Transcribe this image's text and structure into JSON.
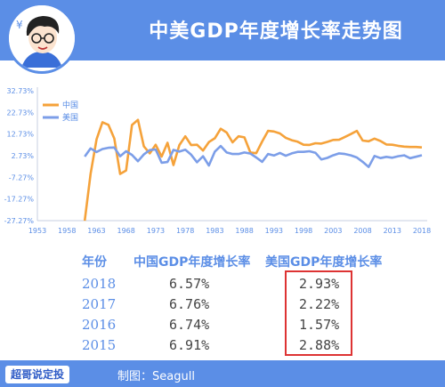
{
  "header": {
    "title": "中美GDP年度增长率走势图"
  },
  "chart_data": {
    "type": "line",
    "title": "中美GDP年度增长率走势图",
    "yticks": [
      "32.73%",
      "22.73%",
      "12.73%",
      "2.73%",
      "-7.27%",
      "-17.27%",
      "-27.27%"
    ],
    "ytick_values": [
      32.73,
      22.73,
      12.73,
      2.73,
      -7.27,
      -17.27,
      -27.27
    ],
    "ylim": [
      -27.27,
      32.73
    ],
    "xticks": [
      "1953",
      "1958",
      "1963",
      "1968",
      "1973",
      "1978",
      "1983",
      "1988",
      "1993",
      "1998",
      "2003",
      "2008",
      "2013",
      "2018"
    ],
    "xtick_values": [
      1953,
      1958,
      1963,
      1968,
      1973,
      1978,
      1983,
      1988,
      1993,
      1998,
      2003,
      2008,
      2013,
      2018
    ],
    "xlim": [
      1953,
      2018
    ],
    "grid": false,
    "legend_position": "top-left",
    "series": [
      {
        "name": "中国",
        "color": "#f5a23a",
        "x": [
          1961,
          1962,
          1963,
          1964,
          1965,
          1966,
          1967,
          1968,
          1969,
          1970,
          1971,
          1972,
          1973,
          1974,
          1975,
          1976,
          1977,
          1978,
          1979,
          1980,
          1981,
          1982,
          1983,
          1984,
          1985,
          1986,
          1987,
          1988,
          1989,
          1990,
          1991,
          1992,
          1993,
          1994,
          1995,
          1996,
          1997,
          1998,
          1999,
          2000,
          2001,
          2002,
          2003,
          2004,
          2005,
          2006,
          2007,
          2008,
          2009,
          2010,
          2011,
          2012,
          2013,
          2014,
          2015,
          2016,
          2017,
          2018
        ],
        "values": [
          -27.3,
          -5.6,
          10.3,
          18.2,
          17.0,
          10.7,
          -5.7,
          -4.1,
          16.9,
          19.3,
          7.1,
          3.8,
          7.8,
          2.3,
          8.7,
          -1.6,
          7.6,
          11.7,
          7.6,
          7.8,
          5.1,
          9.0,
          10.8,
          15.2,
          13.4,
          8.9,
          11.7,
          11.2,
          4.2,
          3.9,
          9.3,
          14.2,
          13.9,
          13.0,
          11.0,
          9.9,
          9.2,
          7.8,
          7.7,
          8.5,
          8.3,
          9.1,
          10.0,
          10.1,
          11.4,
          12.7,
          14.2,
          9.7,
          9.4,
          10.6,
          9.5,
          7.9,
          7.8,
          7.3,
          6.91,
          6.74,
          6.76,
          6.57
        ]
      },
      {
        "name": "美国",
        "color": "#7c9ee8",
        "x": [
          1961,
          1962,
          1963,
          1964,
          1965,
          1966,
          1967,
          1968,
          1969,
          1970,
          1971,
          1972,
          1973,
          1974,
          1975,
          1976,
          1977,
          1978,
          1979,
          1980,
          1981,
          1982,
          1983,
          1984,
          1985,
          1986,
          1987,
          1988,
          1989,
          1990,
          1991,
          1992,
          1993,
          1994,
          1995,
          1996,
          1997,
          1998,
          1999,
          2000,
          2001,
          2002,
          2003,
          2004,
          2005,
          2006,
          2007,
          2008,
          2009,
          2010,
          2011,
          2012,
          2013,
          2014,
          2015,
          2016,
          2017,
          2018
        ],
        "values": [
          2.3,
          6.1,
          4.4,
          5.8,
          6.4,
          6.5,
          2.5,
          4.8,
          3.1,
          0.2,
          3.3,
          5.3,
          5.6,
          -0.5,
          -0.2,
          5.4,
          4.6,
          5.5,
          3.2,
          -0.3,
          2.5,
          -1.8,
          4.6,
          7.2,
          4.2,
          3.5,
          3.5,
          4.2,
          3.7,
          1.9,
          -0.1,
          3.5,
          2.8,
          4.0,
          2.7,
          3.8,
          4.5,
          4.5,
          4.8,
          4.1,
          1.0,
          1.7,
          2.9,
          3.8,
          3.5,
          2.9,
          1.9,
          -0.1,
          -2.5,
          2.6,
          1.6,
          2.2,
          1.8,
          2.5,
          2.88,
          1.57,
          2.22,
          2.93
        ]
      }
    ]
  },
  "table": {
    "headers": [
      "年份",
      "中国GDP年度增长率",
      "美国GDP年度增长率"
    ],
    "rows": [
      [
        "2018",
        "6.57%",
        "2.93%"
      ],
      [
        "2017",
        "6.76%",
        "2.22%"
      ],
      [
        "2016",
        "6.74%",
        "1.57%"
      ],
      [
        "2015",
        "6.91%",
        "2.88%"
      ]
    ],
    "highlight_color": "#d33333"
  },
  "footer": {
    "brand": "超哥说定投",
    "credit": "制图：Seagull"
  },
  "colors": {
    "accent": "#5b8ee6",
    "china": "#f5a23a",
    "usa": "#7c9ee8"
  }
}
